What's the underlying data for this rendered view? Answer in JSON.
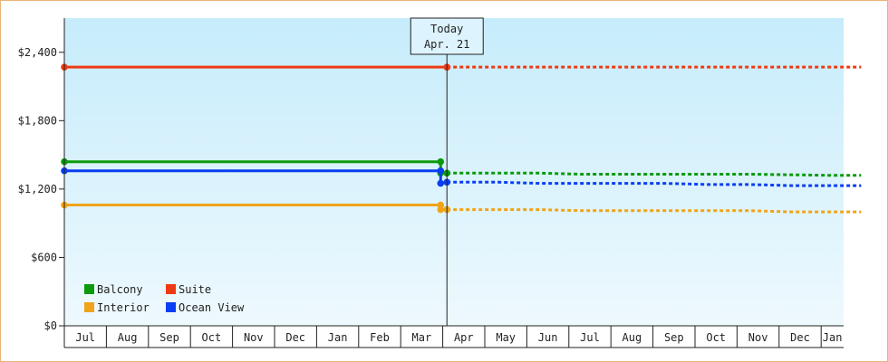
{
  "chart_data": {
    "type": "line",
    "title": "",
    "xlabel": "",
    "ylabel": "",
    "ylim": [
      0,
      2700
    ],
    "y_ticks": [
      "$0",
      "$600",
      "$1,200",
      "$1,800",
      "$2,400"
    ],
    "y_tick_values": [
      0,
      600,
      1200,
      1800,
      2400
    ],
    "x_tick_labels": [
      "Jul",
      "Aug",
      "Sep",
      "Oct",
      "Nov",
      "Dec",
      "Jan",
      "Feb",
      "Mar",
      "Apr",
      "May",
      "Jun",
      "Jul",
      "Aug",
      "Sep",
      "Oct",
      "Nov",
      "Dec",
      "Jan"
    ],
    "today_marker": {
      "line1": "Today",
      "line2": "Apr. 21",
      "x": 9.1
    },
    "legend_position": "bottom-left",
    "grid": false,
    "series": [
      {
        "name": "Balcony",
        "color": "#0a9a0a",
        "historical": [
          [
            0,
            1440
          ],
          [
            8.95,
            1440
          ]
        ],
        "drop": [
          [
            8.95,
            1440
          ],
          [
            8.95,
            1340
          ]
        ],
        "projected": [
          [
            9.1,
            1340
          ],
          [
            11.3,
            1340
          ],
          [
            12.3,
            1330
          ],
          [
            16.3,
            1330
          ],
          [
            18.3,
            1320
          ],
          [
            18.95,
            1320
          ]
        ]
      },
      {
        "name": "Suite",
        "color": "#ee3a12",
        "historical": [
          [
            0,
            2270
          ],
          [
            9.1,
            2270
          ]
        ],
        "projected": [
          [
            9.1,
            2270
          ],
          [
            18.95,
            2270
          ]
        ]
      },
      {
        "name": "Interior",
        "color": "#f0a418",
        "historical": [
          [
            0,
            1060
          ],
          [
            8.95,
            1060
          ]
        ],
        "drop": [
          [
            8.95,
            1060
          ],
          [
            8.95,
            1020
          ]
        ],
        "projected": [
          [
            9.1,
            1020
          ],
          [
            11.3,
            1020
          ],
          [
            12.3,
            1010
          ],
          [
            16.3,
            1010
          ],
          [
            17.3,
            1000
          ],
          [
            18.95,
            1000
          ]
        ]
      },
      {
        "name": "Ocean View",
        "color": "#0a3ef2",
        "historical": [
          [
            0,
            1360
          ],
          [
            8.95,
            1360
          ]
        ],
        "drop": [
          [
            8.95,
            1360
          ],
          [
            8.95,
            1250
          ]
        ],
        "projected": [
          [
            9.1,
            1260
          ],
          [
            10.3,
            1260
          ],
          [
            11.3,
            1250
          ],
          [
            14.3,
            1250
          ],
          [
            15.3,
            1240
          ],
          [
            16.3,
            1240
          ],
          [
            17.3,
            1230
          ],
          [
            18.95,
            1230
          ]
        ]
      }
    ]
  }
}
